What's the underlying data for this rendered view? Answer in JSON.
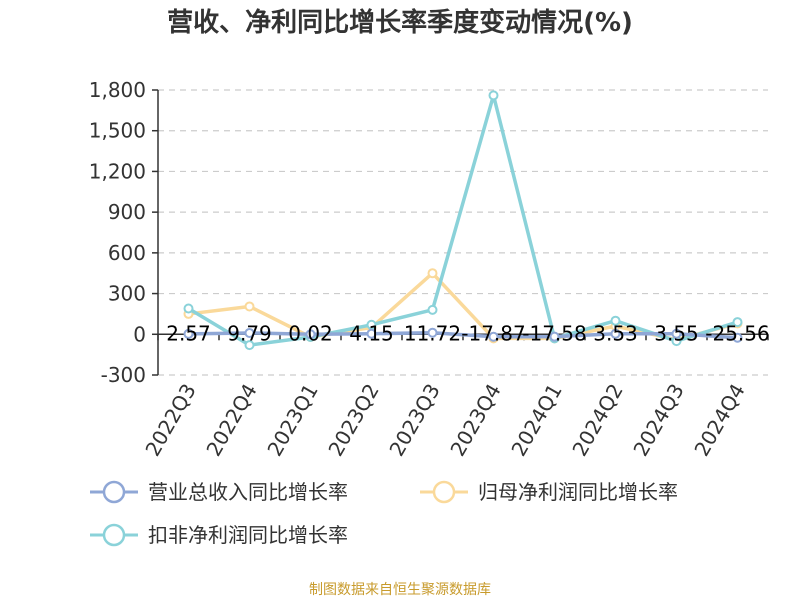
{
  "title": "营收、净利同比增长率季度变动情况(%)",
  "footer": "制图数据来自恒生聚源数据库",
  "colors": {
    "revenue": "#8fa7d6",
    "parent_profit": "#fad99a",
    "deducted_profit": "#8ad2d9",
    "axis": "#333333",
    "grid": "#cccccc"
  },
  "chart_data": {
    "type": "line",
    "title": "营收、净利同比增长率季度变动情况(%)",
    "categories": [
      "2022Q3",
      "2022Q4",
      "2023Q1",
      "2023Q2",
      "2023Q3",
      "2023Q4",
      "2024Q1",
      "2024Q2",
      "2024Q3",
      "2024Q4"
    ],
    "ylim": [
      -300,
      1800
    ],
    "yticks": [
      -300,
      0,
      300,
      600,
      900,
      1200,
      1500,
      1800
    ],
    "ytick_labels": [
      "-300",
      "0",
      "300",
      "600",
      "900",
      "1,200",
      "1,500",
      "1,800"
    ],
    "grid": true,
    "legend_position": "bottom-left",
    "series": [
      {
        "name": "营业总收入同比增长率",
        "color_key": "revenue",
        "values": [
          2.57,
          9.79,
          0.02,
          4.15,
          11.72,
          -17.87,
          -17.58,
          3.53,
          3.55,
          -25.56
        ],
        "labels": [
          "2.57",
          "9.79",
          "0.02",
          "4.15",
          "11.72",
          "-17.87",
          "-17.58",
          "3.53",
          "3.55",
          "-25.56"
        ]
      },
      {
        "name": "归母净利润同比增长率",
        "color_key": "parent_profit",
        "values": [
          150,
          205,
          -20,
          50,
          450,
          -30,
          -30,
          60,
          -40,
          80
        ]
      },
      {
        "name": "扣非净利润同比增长率",
        "color_key": "deducted_profit",
        "values": [
          190,
          -80,
          -20,
          70,
          180,
          1760,
          -30,
          100,
          -50,
          90
        ]
      }
    ]
  }
}
